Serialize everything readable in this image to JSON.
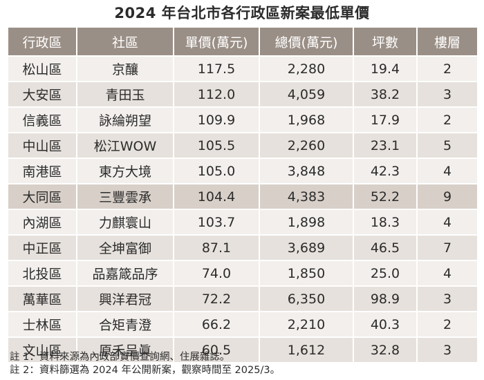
{
  "title": "2024 年台北市各行政區新案最低單價",
  "chart_data": {
    "type": "table",
    "title": "2024 年台北市各行政區新案最低單價",
    "columns": [
      "行政區",
      "社區",
      "單價(萬元)",
      "總價(萬元)",
      "坪數",
      "樓層"
    ],
    "rows": [
      [
        "松山區",
        "京釀",
        "117.5",
        "2,280",
        "19.4",
        "2"
      ],
      [
        "大安區",
        "青田玉",
        "112.0",
        "4,059",
        "38.2",
        "3"
      ],
      [
        "信義區",
        "詠綸朔望",
        "109.9",
        "1,968",
        "17.9",
        "2"
      ],
      [
        "中山區",
        "松江WOW",
        "105.5",
        "2,260",
        "23.1",
        "5"
      ],
      [
        "南港區",
        "東方大境",
        "105.0",
        "3,848",
        "42.3",
        "4"
      ],
      [
        "大同區",
        "三豐雲承",
        "104.4",
        "4,383",
        "52.2",
        "9"
      ],
      [
        "內湖區",
        "力麒寰山",
        "103.7",
        "1,898",
        "18.3",
        "4"
      ],
      [
        "中正區",
        "全坤富御",
        "87.1",
        "3,689",
        "46.5",
        "7"
      ],
      [
        "北投區",
        "品嘉箴品序",
        "74.0",
        "1,850",
        "25.0",
        "4"
      ],
      [
        "萬華區",
        "興洋君冠",
        "72.2",
        "6,350",
        "98.9",
        "3"
      ],
      [
        "士林區",
        "合矩青澄",
        "66.2",
        "2,210",
        "40.3",
        "2"
      ],
      [
        "文山區",
        "原禾呈眞",
        "60.5",
        "1,612",
        "32.8",
        "3"
      ]
    ],
    "highlight_row_index": 5
  },
  "notes": [
    "註 1：資料來源為內政部實價查詢網、住展雜誌。",
    "註 2：資料篩選為 2024 年公開新案，觀察時間至 2025/3。"
  ],
  "colors": {
    "header_bg": "#9a8f86",
    "header_text": "#ffffff",
    "row_light": "#f2efec",
    "row_dark": "#e6e1dc",
    "row_highlight": "#d7cfc8",
    "text": "#2b2b2b"
  }
}
